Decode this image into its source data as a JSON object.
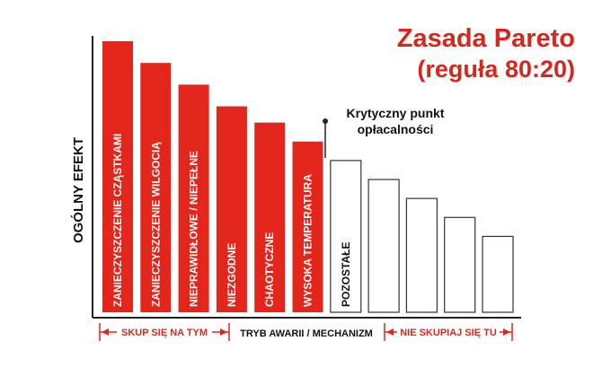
{
  "chart_data": {
    "type": "bar",
    "title": "Zasada Pareto",
    "subtitle": "(reguła 80:20)",
    "ylabel": "OGÓLNY EFEKT",
    "xlabel": "TRYB AWARII / MECHANIZM",
    "ylim": [
      0,
      100
    ],
    "categories": [
      "ZANIECZYSZCZENIE CZĄSTKAMI",
      "ZANIECZYSZCZENIE WILGOCIĄ",
      "NIEPRAWIDŁOWE / NIEPEŁNE",
      "NIEZGODNE",
      "CHAOTYCZNE",
      "WYSOKA TEMPERATURA",
      "POZOSTAŁE",
      "",
      "",
      "",
      ""
    ],
    "values": [
      100,
      92,
      84,
      76,
      70,
      63,
      56,
      49,
      42,
      35,
      28
    ],
    "highlighted_count": 6,
    "colors": {
      "highlight": "#e3261b",
      "normal": "#ffffff",
      "title": "#d9251c",
      "axis": "#222222"
    },
    "annotation": {
      "line1": "Krytyczny punkt",
      "line2": "opłacalności"
    },
    "bottom_labels": {
      "focus": "SKUP SIĘ NA TYM",
      "no_focus": "NIE SKUPIAJ SIĘ TU"
    }
  }
}
